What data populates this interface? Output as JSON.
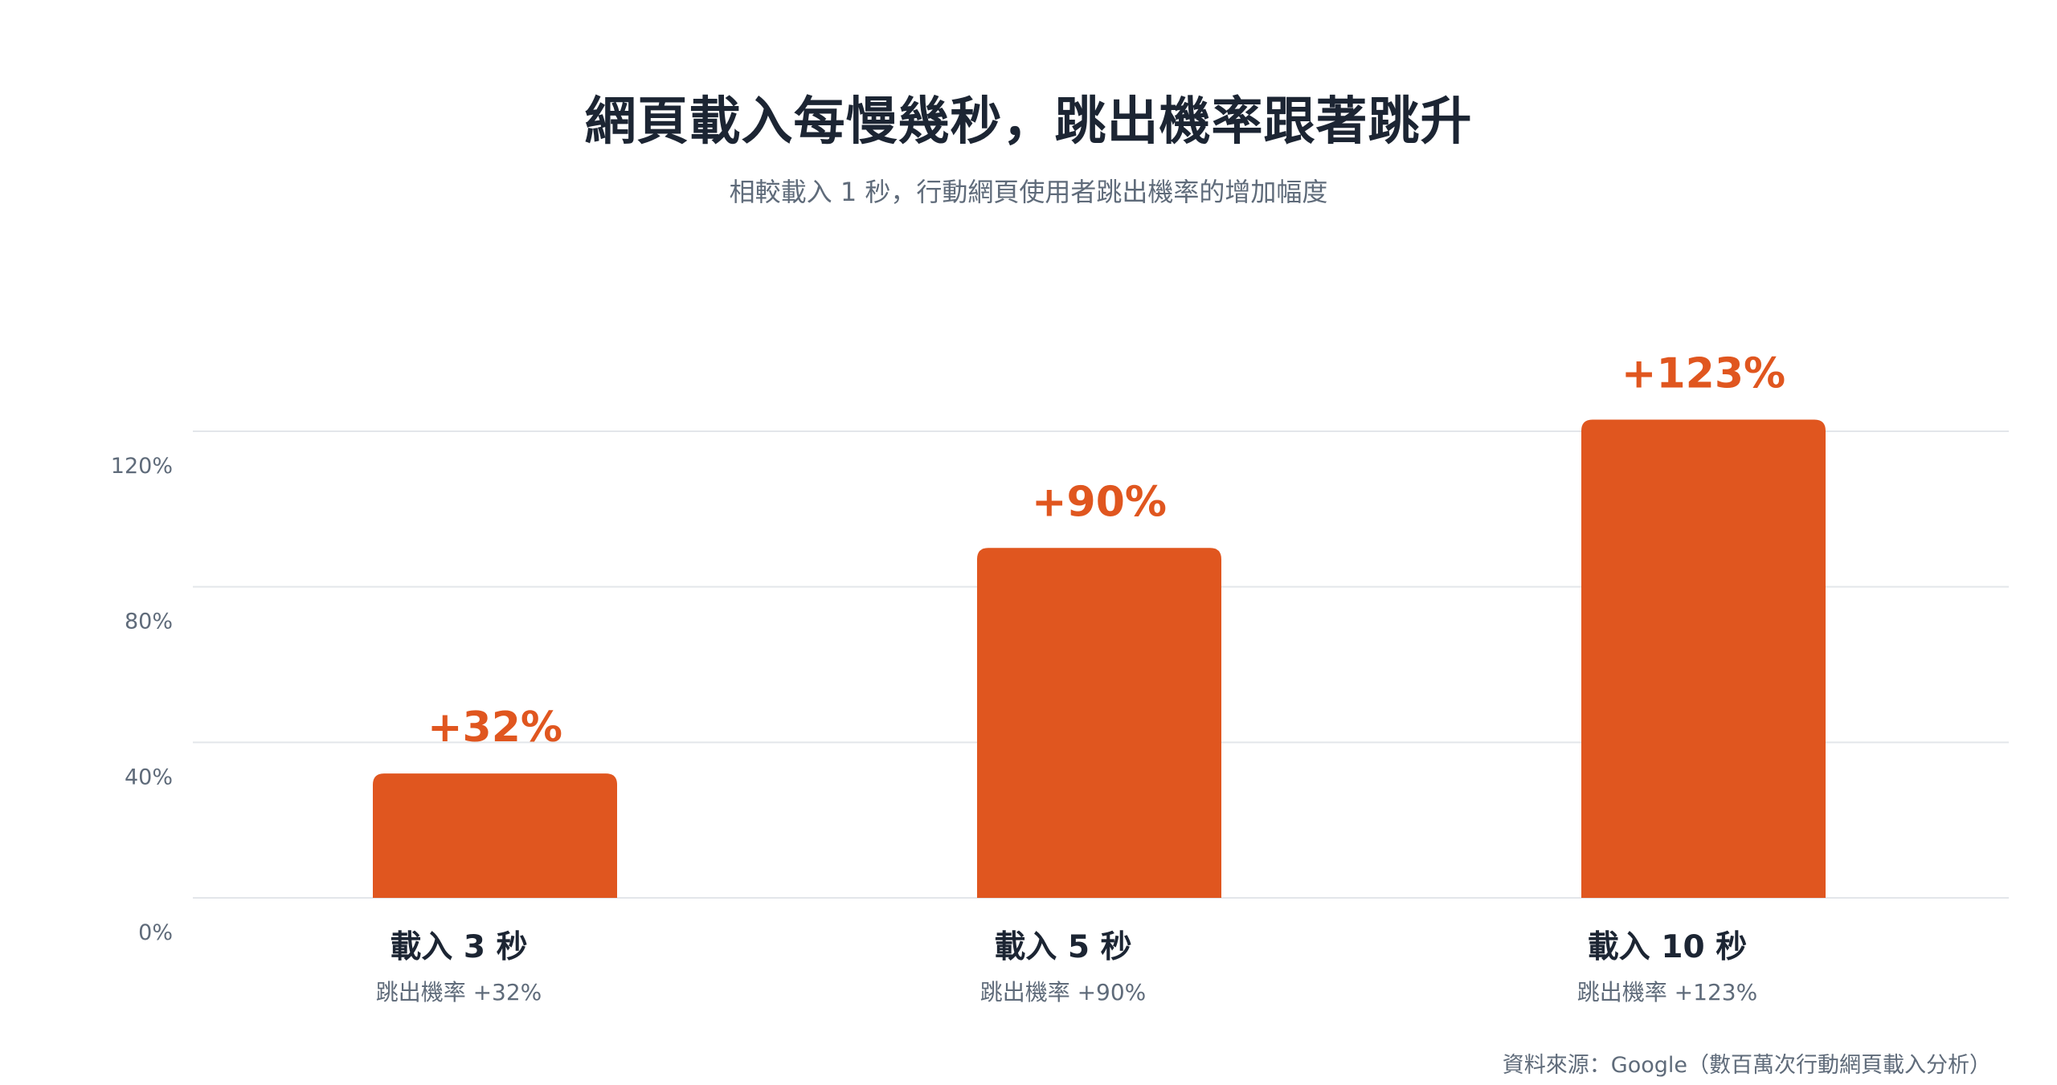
{
  "chart_data": {
    "type": "bar",
    "title": "網頁載入每慢幾秒，跳出機率跟著跳升",
    "subtitle": "相較載入 1 秒，行動網頁使用者跳出機率的增加幅度",
    "categories": [
      "載入 3 秒",
      "載入 5 秒",
      "載入 10 秒"
    ],
    "category_sublabels": [
      "跳出機率 +32%",
      "跳出機率 +90%",
      "跳出機率 +123%"
    ],
    "values": [
      32,
      90,
      123
    ],
    "data_labels": [
      "+32%",
      "+90%",
      "+123%"
    ],
    "ylim": [
      0,
      120
    ],
    "yticks": [
      0,
      40,
      80,
      120
    ],
    "ytick_labels": [
      "0%",
      "40%",
      "80%",
      "120%"
    ],
    "grid": true,
    "colors": {
      "bar": "#e0561f",
      "data_label": "#e0561f",
      "grid": "#e3e6ea",
      "tick_label": "#5f6b7a",
      "category_label": "#1c2533",
      "sublabel": "#5f6b7a"
    }
  },
  "source_note": "資料來源：Google（數百萬次行動網頁載入分析）"
}
